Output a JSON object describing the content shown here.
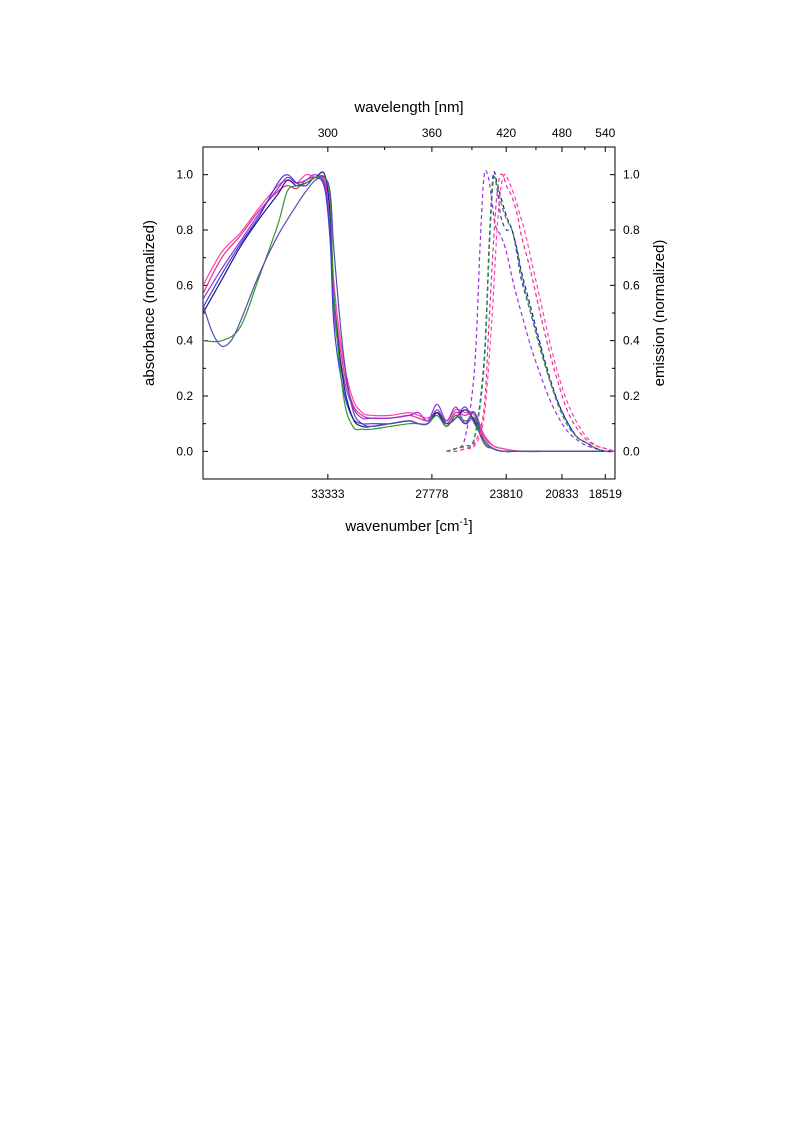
{
  "chart_data": {
    "type": "line",
    "xlabel_bottom": "wavenumber [cm",
    "xlabel_bottom_sup": "-1",
    "xlabel_bottom_end": "]",
    "xlabel_top": "wavelength [nm]",
    "ylabel_left": "absorbance (normalized)",
    "ylabel_right": "emission (normalized)",
    "x_direction": "decreasing wavenumber left to right",
    "xlim_wavenumber": [
      40000,
      18000
    ],
    "ylim": [
      -0.1,
      1.1
    ],
    "grid": false,
    "bottom_ticks": [
      33333,
      27778,
      23810,
      20833,
      18519
    ],
    "bottom_tick_labels": [
      "33333",
      "27778",
      "23810",
      "20833",
      "18519"
    ],
    "top_ticks_nm": [
      300,
      360,
      420,
      480,
      540
    ],
    "top_tick_labels": [
      "300",
      "360",
      "420",
      "480",
      "540"
    ],
    "y_ticks": [
      0.0,
      0.2,
      0.4,
      0.6,
      0.8,
      1.0
    ],
    "y_tick_labels": [
      "0.0",
      "0.2",
      "0.4",
      "0.6",
      "0.8",
      "1.0"
    ],
    "absorption_series": [
      {
        "color": "#e0308c",
        "style": "solid",
        "x": [
          40000,
          39000,
          38000,
          37000,
          36000,
          35500,
          35000,
          34500,
          34000,
          33500,
          33200,
          33000,
          32500,
          32000,
          31500,
          31000,
          30000,
          29000,
          28500,
          28000,
          27500,
          27000,
          26500,
          26000,
          25500,
          25000,
          24500,
          24000,
          23000,
          21000,
          18000
        ],
        "y": [
          0.57,
          0.7,
          0.78,
          0.87,
          0.94,
          0.96,
          0.95,
          0.98,
          0.99,
          0.97,
          0.8,
          0.55,
          0.3,
          0.17,
          0.13,
          0.12,
          0.12,
          0.13,
          0.12,
          0.11,
          0.13,
          0.1,
          0.14,
          0.13,
          0.14,
          0.06,
          0.02,
          0.01,
          0.0,
          0.0,
          0.0
        ]
      },
      {
        "color": "#ff3fb0",
        "style": "solid",
        "x": [
          40000,
          39000,
          38000,
          37000,
          36000,
          35500,
          35000,
          34500,
          34000,
          33500,
          33200,
          33000,
          32500,
          32000,
          31500,
          31000,
          30000,
          29000,
          28500,
          28000,
          27500,
          27000,
          26500,
          26000,
          25500,
          25000,
          24500,
          24000,
          23000,
          21000,
          18000
        ],
        "y": [
          0.6,
          0.72,
          0.79,
          0.88,
          0.96,
          0.98,
          0.97,
          1.0,
          0.99,
          0.98,
          0.85,
          0.6,
          0.33,
          0.19,
          0.14,
          0.13,
          0.13,
          0.14,
          0.13,
          0.12,
          0.14,
          0.11,
          0.15,
          0.14,
          0.13,
          0.05,
          0.02,
          0.01,
          0.0,
          0.0,
          0.0
        ]
      },
      {
        "color": "#9a2fe0",
        "style": "solid",
        "x": [
          40000,
          39000,
          38000,
          37000,
          36000,
          35500,
          35000,
          34500,
          34000,
          33500,
          33200,
          33000,
          32500,
          32000,
          31500,
          31000,
          30000,
          29000,
          28500,
          28000,
          27500,
          27000,
          26500,
          26000,
          25500,
          25000,
          24500,
          24000,
          23000,
          21000,
          18000
        ],
        "y": [
          0.55,
          0.66,
          0.76,
          0.86,
          0.95,
          0.99,
          0.97,
          0.98,
          1.0,
          0.96,
          0.78,
          0.5,
          0.27,
          0.16,
          0.12,
          0.12,
          0.12,
          0.13,
          0.14,
          0.11,
          0.17,
          0.11,
          0.16,
          0.1,
          0.12,
          0.04,
          0.01,
          0.0,
          0.0,
          0.0,
          0.0
        ]
      },
      {
        "color": "#3c3ce0",
        "style": "solid",
        "x": [
          40000,
          39000,
          38000,
          37000,
          36000,
          35500,
          35000,
          34500,
          34000,
          33500,
          33200,
          33000,
          32500,
          32000,
          31500,
          31000,
          30000,
          29000,
          28500,
          28000,
          27500,
          27000,
          26500,
          26000,
          25500,
          25000,
          24500,
          24000,
          23000,
          21000,
          18000
        ],
        "y": [
          0.52,
          0.64,
          0.75,
          0.85,
          0.97,
          1.0,
          0.97,
          0.96,
          0.99,
          0.95,
          0.75,
          0.45,
          0.22,
          0.12,
          0.1,
          0.1,
          0.1,
          0.11,
          0.1,
          0.1,
          0.14,
          0.09,
          0.13,
          0.1,
          0.14,
          0.03,
          0.01,
          0.0,
          0.0,
          0.0,
          0.0
        ]
      },
      {
        "color": "#1a1a80",
        "style": "solid",
        "x": [
          40000,
          39000,
          38000,
          37000,
          36000,
          35500,
          35000,
          34500,
          34000,
          33500,
          33200,
          33000,
          32500,
          32000,
          31500,
          31000,
          30000,
          29000,
          28500,
          28000,
          27500,
          27000,
          26500,
          26000,
          25500,
          25000,
          24500,
          24000,
          23000,
          21000,
          18000
        ],
        "y": [
          0.5,
          0.62,
          0.74,
          0.84,
          0.93,
          0.98,
          0.96,
          0.97,
          0.99,
          1.0,
          0.85,
          0.55,
          0.25,
          0.12,
          0.09,
          0.09,
          0.1,
          0.11,
          0.1,
          0.1,
          0.14,
          0.1,
          0.12,
          0.15,
          0.11,
          0.03,
          0.01,
          0.0,
          0.0,
          0.0,
          0.0
        ]
      },
      {
        "color": "#2e9a2e",
        "style": "solid",
        "x": [
          40000,
          39000,
          38000,
          37000,
          36000,
          35500,
          35000,
          34500,
          34000,
          33500,
          33200,
          33000,
          32500,
          32000,
          31500,
          31000,
          30000,
          29000,
          28500,
          28000,
          27500,
          27000,
          26500,
          26000,
          25500,
          25000,
          24500,
          24000,
          23000,
          21000,
          18000
        ],
        "y": [
          0.4,
          0.4,
          0.45,
          0.63,
          0.82,
          0.94,
          0.96,
          0.97,
          0.99,
          0.99,
          0.9,
          0.55,
          0.2,
          0.09,
          0.08,
          0.08,
          0.09,
          0.1,
          0.1,
          0.1,
          0.13,
          0.09,
          0.13,
          0.11,
          0.12,
          0.03,
          0.01,
          0.0,
          0.0,
          0.0,
          0.0
        ]
      },
      {
        "color": "#5a4ab0",
        "style": "solid",
        "x": [
          40000,
          39500,
          39000,
          38500,
          38000,
          37000,
          36000,
          35000,
          34500,
          34000,
          33500,
          33200,
          33000,
          32500,
          32000,
          31500,
          31000,
          30000,
          29000,
          28500,
          28000,
          27500,
          27000,
          26500,
          26000,
          25500,
          25000,
          24500,
          24000,
          23000,
          21000,
          18000
        ],
        "y": [
          0.53,
          0.43,
          0.38,
          0.4,
          0.47,
          0.64,
          0.78,
          0.89,
          0.94,
          0.98,
          0.99,
          0.93,
          0.72,
          0.35,
          0.15,
          0.1,
          0.09,
          0.1,
          0.11,
          0.1,
          0.1,
          0.15,
          0.1,
          0.12,
          0.16,
          0.1,
          0.04,
          0.01,
          0.0,
          0.0,
          0.0,
          0.0
        ]
      }
    ],
    "emission_series": [
      {
        "color": "#9a2fe0",
        "style": "dashed",
        "x": [
          27000,
          26500,
          26000,
          25500,
          25200,
          25000,
          24800,
          24600,
          24400,
          24100,
          23800,
          23400,
          23000,
          22500,
          22000,
          21500,
          21000,
          20500,
          20000,
          19500,
          19000,
          18500,
          18000
        ],
        "y": [
          0.0,
          0.01,
          0.05,
          0.3,
          0.75,
          0.99,
          1.0,
          0.92,
          0.82,
          0.78,
          0.72,
          0.6,
          0.5,
          0.38,
          0.28,
          0.19,
          0.12,
          0.07,
          0.04,
          0.02,
          0.01,
          0.0,
          0.0
        ]
      },
      {
        "color": "#3c3ce0",
        "style": "dashed",
        "x": [
          27000,
          26500,
          26000,
          25500,
          25000,
          24700,
          24500,
          24300,
          24100,
          23800,
          23500,
          23200,
          23000,
          22500,
          22000,
          21500,
          21000,
          20500,
          20000,
          19500,
          19000,
          18500,
          18000
        ],
        "y": [
          0.0,
          0.01,
          0.02,
          0.05,
          0.3,
          0.75,
          0.98,
          0.95,
          0.85,
          0.8,
          0.8,
          0.7,
          0.62,
          0.5,
          0.38,
          0.26,
          0.17,
          0.1,
          0.05,
          0.03,
          0.01,
          0.0,
          0.0
        ]
      },
      {
        "color": "#1a1a80",
        "style": "dashed",
        "x": [
          27000,
          26500,
          26000,
          25500,
          25000,
          24700,
          24500,
          24300,
          24100,
          23800,
          23500,
          23200,
          23000,
          22500,
          22000,
          21500,
          21000,
          20500,
          20000,
          19500,
          19000,
          18500,
          18000
        ],
        "y": [
          0.0,
          0.01,
          0.02,
          0.05,
          0.32,
          0.78,
          1.0,
          0.97,
          0.92,
          0.85,
          0.8,
          0.72,
          0.65,
          0.52,
          0.39,
          0.27,
          0.17,
          0.1,
          0.05,
          0.03,
          0.01,
          0.0,
          0.0
        ]
      },
      {
        "color": "#2e9a2e",
        "style": "dashed",
        "x": [
          27000,
          26500,
          26000,
          25500,
          25000,
          24700,
          24500,
          24300,
          24100,
          23800,
          23500,
          23200,
          23000,
          22500,
          22000,
          21500,
          21000,
          20500,
          20000,
          19500,
          19000,
          18500,
          18000
        ],
        "y": [
          0.0,
          0.01,
          0.02,
          0.05,
          0.3,
          0.76,
          0.98,
          0.96,
          0.9,
          0.84,
          0.8,
          0.72,
          0.64,
          0.5,
          0.37,
          0.26,
          0.16,
          0.09,
          0.05,
          0.03,
          0.01,
          0.0,
          0.0
        ]
      },
      {
        "color": "#e0308c",
        "style": "dashed",
        "x": [
          27000,
          26500,
          26000,
          25500,
          25000,
          24700,
          24400,
          24200,
          24000,
          23800,
          23500,
          23200,
          23000,
          22500,
          22000,
          21500,
          21000,
          20500,
          20000,
          19500,
          19000,
          18500,
          18000
        ],
        "y": [
          0.0,
          0.0,
          0.01,
          0.03,
          0.15,
          0.5,
          0.85,
          0.98,
          1.0,
          0.96,
          0.92,
          0.85,
          0.78,
          0.65,
          0.5,
          0.36,
          0.24,
          0.14,
          0.08,
          0.04,
          0.02,
          0.01,
          0.0
        ]
      },
      {
        "color": "#ff3fb0",
        "style": "dashed",
        "x": [
          27000,
          26500,
          26000,
          25500,
          25000,
          24600,
          24300,
          24100,
          23900,
          23700,
          23400,
          23100,
          22800,
          22400,
          22000,
          21500,
          21000,
          20500,
          20000,
          19500,
          19000,
          18500,
          18000
        ],
        "y": [
          0.0,
          0.0,
          0.01,
          0.02,
          0.12,
          0.45,
          0.8,
          0.95,
          1.0,
          0.98,
          0.93,
          0.86,
          0.79,
          0.67,
          0.55,
          0.4,
          0.27,
          0.17,
          0.1,
          0.05,
          0.02,
          0.01,
          0.0
        ]
      }
    ]
  }
}
